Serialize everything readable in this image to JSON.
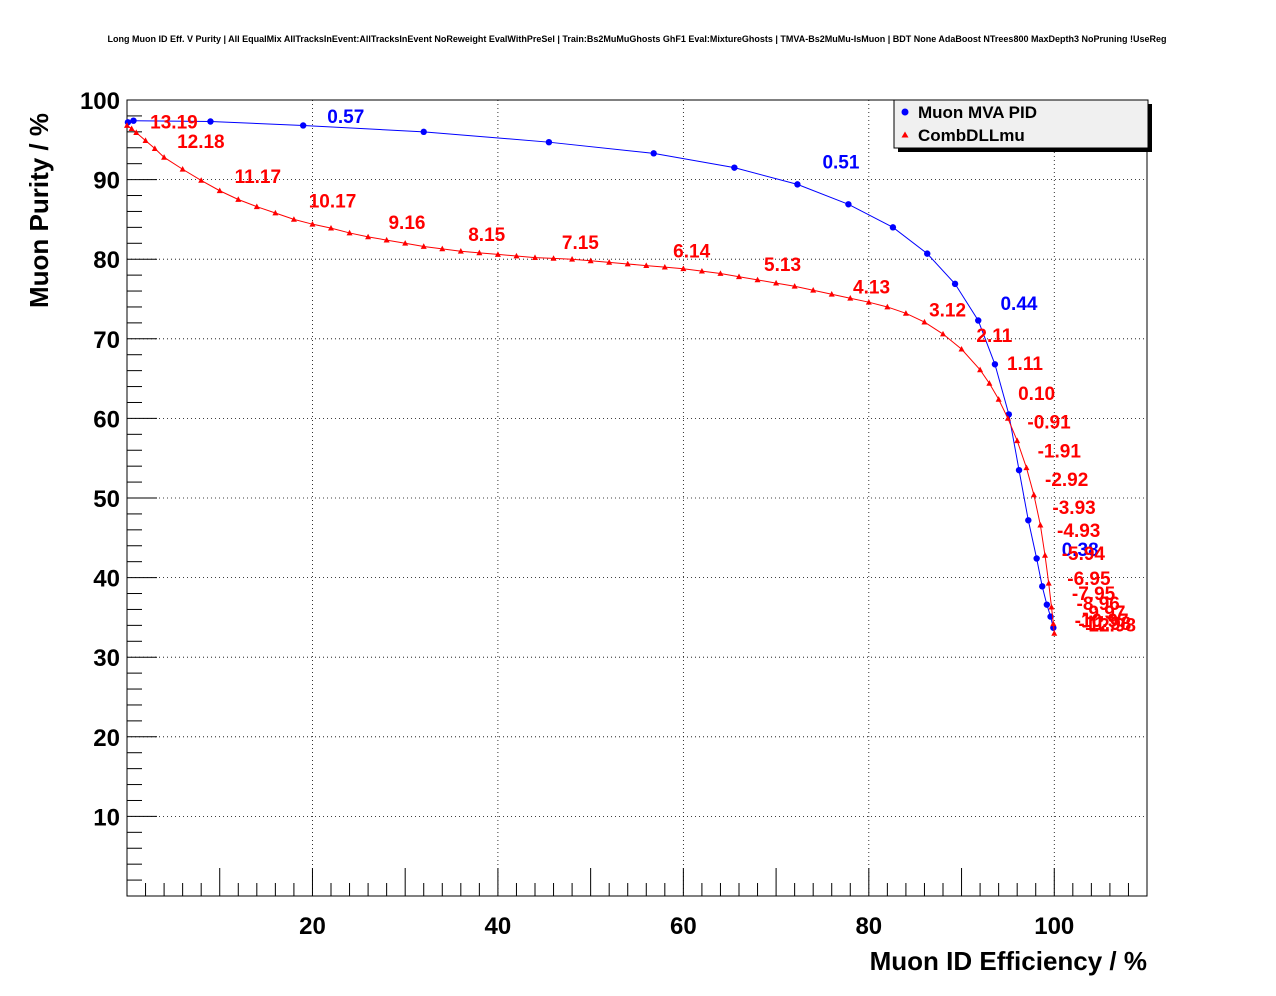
{
  "chart_data": {
    "type": "line",
    "title": "Long Muon ID Eff. V Purity | All EqualMix AllTracksInEvent:AllTracksInEvent NoReweight EvalWithPreSel | Train:Bs2MuMuGhosts GhF1 Eval:MixtureGhosts | TMVA-Bs2MuMu-IsMuon | BDT None AdaBoost NTrees800 MaxDepth3 NoPruning !UseReg",
    "xlabel": "Muon ID Efficiency / %",
    "ylabel": "Muon Purity / %",
    "xlim": [
      0,
      110
    ],
    "ylim": [
      0,
      100
    ],
    "xticks": [
      20,
      40,
      60,
      80,
      100
    ],
    "yticks": [
      10,
      20,
      30,
      40,
      50,
      60,
      70,
      80,
      90,
      100
    ],
    "grid": true,
    "legend_position": "top-right",
    "series": [
      {
        "name": "Muon MVA PID",
        "color": "#0000ff",
        "marker": "circle",
        "x": [
          0.1,
          0.7,
          9.0,
          19.0,
          32.0,
          45.5,
          56.8,
          65.5,
          72.3,
          77.8,
          82.6,
          86.3,
          89.3,
          91.8,
          93.6,
          95.1,
          96.2,
          97.2,
          98.1,
          98.7,
          99.2,
          99.6,
          99.9
        ],
        "y": [
          97.2,
          97.4,
          97.3,
          96.8,
          96.0,
          94.7,
          93.3,
          91.5,
          89.4,
          86.9,
          84.0,
          80.7,
          76.9,
          72.3,
          66.8,
          60.5,
          53.5,
          47.2,
          42.4,
          38.9,
          36.6,
          35.1,
          33.7
        ]
      },
      {
        "name": "CombDLLmu",
        "color": "#ff0000",
        "marker": "triangle",
        "x": [
          0.0,
          0.5,
          1.0,
          2.0,
          3.0,
          4.0,
          6.0,
          8.0,
          10.0,
          12.0,
          14.0,
          16.0,
          18.0,
          20.0,
          22.0,
          24.0,
          26.0,
          28.0,
          30.0,
          32.0,
          34.0,
          36.0,
          38.0,
          40.0,
          42.0,
          44.0,
          46.0,
          48.0,
          50.0,
          52.0,
          54.0,
          56.0,
          58.0,
          60.0,
          62.0,
          64.0,
          66.0,
          68.0,
          70.0,
          72.0,
          74.0,
          76.0,
          78.0,
          80.0,
          82.0,
          84.0,
          86.0,
          88.0,
          90.0,
          92.0,
          93.0,
          94.0,
          95.0,
          96.0,
          97.0,
          97.8,
          98.5,
          99.0,
          99.4,
          99.7,
          99.9,
          100.0
        ],
        "y": [
          96.8,
          96.4,
          95.9,
          94.9,
          93.9,
          92.8,
          91.3,
          89.9,
          88.6,
          87.5,
          86.6,
          85.8,
          85.0,
          84.4,
          83.9,
          83.3,
          82.8,
          82.4,
          82.0,
          81.6,
          81.3,
          81.0,
          80.8,
          80.6,
          80.4,
          80.2,
          80.1,
          80.0,
          79.8,
          79.6,
          79.4,
          79.2,
          79.0,
          78.8,
          78.5,
          78.2,
          77.8,
          77.4,
          77.0,
          76.6,
          76.1,
          75.6,
          75.1,
          74.6,
          74.0,
          73.2,
          72.1,
          70.6,
          68.7,
          66.1,
          64.4,
          62.4,
          60.0,
          57.2,
          53.8,
          50.4,
          46.6,
          42.8,
          39.3,
          36.3,
          34.2,
          33.0
        ]
      }
    ],
    "annotations": [
      {
        "text": "0.57",
        "x": 21.6,
        "y": 97.1,
        "color": "#0000ff"
      },
      {
        "text": "0.51",
        "x": 75.0,
        "y": 91.4,
        "color": "#0000ff"
      },
      {
        "text": "0.44",
        "x": 94.2,
        "y": 73.6,
        "color": "#0000ff"
      },
      {
        "text": "0.38",
        "x": 100.8,
        "y": 42.7,
        "color": "#0000ff"
      },
      {
        "text": "13.19",
        "x": 2.5,
        "y": 96.4,
        "color": "#ff0000"
      },
      {
        "text": "12.18",
        "x": 5.4,
        "y": 94.0,
        "color": "#ff0000"
      },
      {
        "text": "11.17",
        "x": 11.6,
        "y": 89.6,
        "color": "#ff0000"
      },
      {
        "text": "10.17",
        "x": 19.6,
        "y": 86.5,
        "color": "#ff0000"
      },
      {
        "text": "9.16",
        "x": 28.2,
        "y": 83.8,
        "color": "#ff0000"
      },
      {
        "text": "8.15",
        "x": 36.8,
        "y": 82.3,
        "color": "#ff0000"
      },
      {
        "text": "7.15",
        "x": 46.9,
        "y": 81.3,
        "color": "#ff0000"
      },
      {
        "text": "6.14",
        "x": 58.9,
        "y": 80.2,
        "color": "#ff0000"
      },
      {
        "text": "5.13",
        "x": 68.7,
        "y": 78.5,
        "color": "#ff0000"
      },
      {
        "text": "4.13",
        "x": 78.3,
        "y": 75.7,
        "color": "#ff0000"
      },
      {
        "text": "3.12",
        "x": 86.5,
        "y": 72.8,
        "color": "#ff0000"
      },
      {
        "text": "2.11",
        "x": 91.6,
        "y": 69.6,
        "color": "#ff0000"
      },
      {
        "text": "1.11",
        "x": 94.9,
        "y": 66.1,
        "color": "#ff0000"
      },
      {
        "text": "0.10",
        "x": 96.1,
        "y": 62.3,
        "color": "#ff0000"
      },
      {
        "text": "-0.91",
        "x": 97.1,
        "y": 58.7,
        "color": "#ff0000"
      },
      {
        "text": "-1.91",
        "x": 98.2,
        "y": 55.1,
        "color": "#ff0000"
      },
      {
        "text": "-2.92",
        "x": 99.0,
        "y": 51.5,
        "color": "#ff0000"
      },
      {
        "text": "-3.93",
        "x": 99.8,
        "y": 48.0,
        "color": "#ff0000"
      },
      {
        "text": "-4.93",
        "x": 100.3,
        "y": 45.1,
        "color": "#ff0000"
      },
      {
        "text": "-5.94",
        "x": 100.8,
        "y": 42.2,
        "color": "#ff0000"
      },
      {
        "text": "-6.95",
        "x": 101.4,
        "y": 39.1,
        "color": "#ff0000"
      },
      {
        "text": "-7.95",
        "x": 101.9,
        "y": 37.2,
        "color": "#ff0000"
      },
      {
        "text": "-8.96",
        "x": 102.4,
        "y": 35.9,
        "color": "#ff0000"
      },
      {
        "text": "-9.97",
        "x": 103.0,
        "y": 34.8,
        "color": "#ff0000"
      },
      {
        "text": "-10.97",
        "x": 102.2,
        "y": 33.8,
        "color": "#ff0000"
      },
      {
        "text": "-11.98",
        "x": 102.6,
        "y": 33.4,
        "color": "#ff0000"
      },
      {
        "text": "-12.98",
        "x": 103.0,
        "y": 33.2,
        "color": "#ff0000"
      }
    ]
  }
}
